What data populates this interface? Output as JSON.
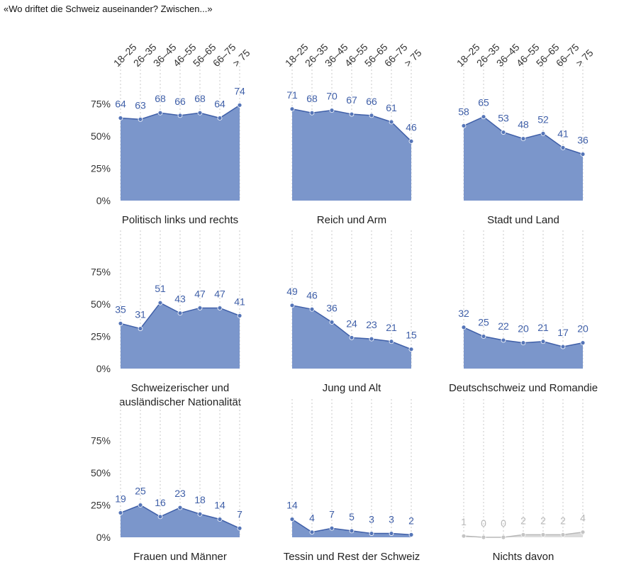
{
  "title": "«Wo driftet die Schweiz auseinander? Zwischen...»",
  "colors": {
    "area": "#7b96cb",
    "line": "#3f5fa8",
    "grey_area": "#dcdcdc",
    "grey_line": "#b8b8b8",
    "grid": "#c8c8c8"
  },
  "chart_data": {
    "type": "area",
    "x": [
      "18–25",
      "26–35",
      "36–45",
      "46–55",
      "56–65",
      "66–75",
      "> 75"
    ],
    "yticks": [
      "75%",
      "50%",
      "25%",
      "0%"
    ],
    "ylim": [
      0,
      100
    ],
    "series": [
      {
        "name": "Politisch links und rechts",
        "values": [
          64,
          63,
          68,
          66,
          68,
          64,
          74
        ]
      },
      {
        "name": "Reich und Arm",
        "values": [
          71,
          68,
          70,
          67,
          66,
          61,
          46
        ]
      },
      {
        "name": "Stadt und Land",
        "values": [
          58,
          65,
          53,
          48,
          52,
          41,
          36
        ]
      },
      {
        "name": "Schweizerischer und ausländischer Nationalität",
        "values": [
          35,
          31,
          51,
          43,
          47,
          47,
          41
        ]
      },
      {
        "name": "Jung und Alt",
        "values": [
          49,
          46,
          36,
          24,
          23,
          21,
          15
        ]
      },
      {
        "name": "Deutschschweiz und Romandie",
        "values": [
          32,
          25,
          22,
          20,
          21,
          17,
          20
        ]
      },
      {
        "name": "Frauen und Männer",
        "values": [
          19,
          25,
          16,
          23,
          18,
          14,
          7
        ]
      },
      {
        "name": "Tessin und Rest der Schweiz",
        "values": [
          14,
          4,
          7,
          5,
          3,
          3,
          2
        ]
      },
      {
        "name": "Nichts davon",
        "values": [
          1,
          0,
          0,
          2,
          2,
          2,
          4
        ]
      }
    ]
  }
}
